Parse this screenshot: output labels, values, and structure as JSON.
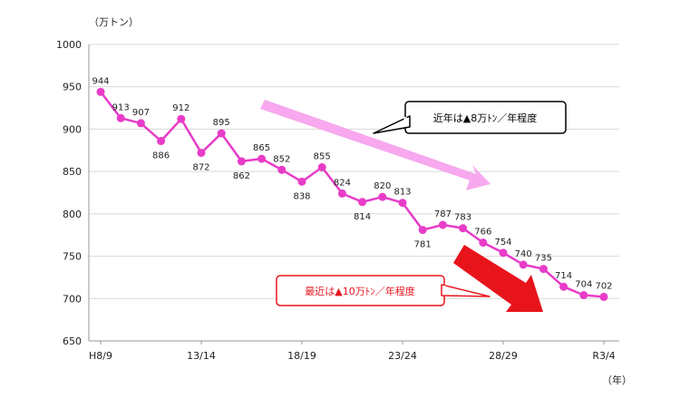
{
  "chart_data": {
    "type": "line",
    "title": "",
    "ylabel": "（万トン）",
    "xlabel": "（年）",
    "ylim": [
      650,
      1000
    ],
    "yticks": [
      650,
      700,
      750,
      800,
      850,
      900,
      950,
      1000
    ],
    "grid": true,
    "x_tick_labels": [
      {
        "index": 0,
        "label": "H8/9"
      },
      {
        "index": 5,
        "label": "13/14"
      },
      {
        "index": 10,
        "label": "18/19"
      },
      {
        "index": 15,
        "label": "23/24"
      },
      {
        "index": 20,
        "label": "28/29"
      },
      {
        "index": 25,
        "label": "R3/4"
      }
    ],
    "series": [
      {
        "color": "#e83cc8",
        "values": [
          944,
          913,
          907,
          886,
          912,
          872,
          895,
          862,
          865,
          852,
          838,
          855,
          824,
          814,
          820,
          813,
          781,
          787,
          783,
          766,
          754,
          740,
          735,
          714,
          704,
          702
        ]
      }
    ],
    "annotations": [
      {
        "text": "近年は▲8万ﾄﾝ／年程度",
        "color": "#000000",
        "arrow_color": "#f7a8ee"
      },
      {
        "text": "最近は▲10万ﾄﾝ／年程度",
        "color": "#e8141c",
        "arrow_color": "#e8141c"
      }
    ]
  }
}
